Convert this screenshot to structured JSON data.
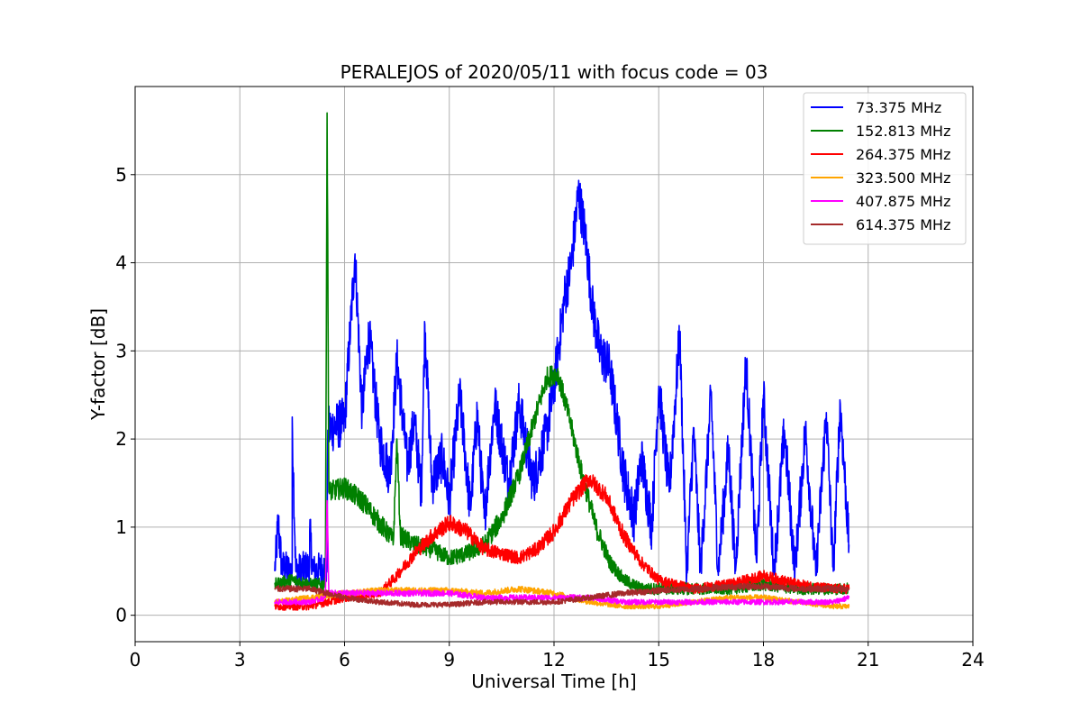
{
  "chart_data": {
    "type": "line",
    "title": "PERALEJOS of 2020/05/11 with focus code = 03",
    "xlabel": "Universal Time [h]",
    "ylabel": "Y-factor [dB]",
    "xlim": [
      0,
      24
    ],
    "ylim": [
      -0.3,
      6.0
    ],
    "xticks": [
      0,
      3,
      6,
      9,
      12,
      15,
      18,
      21,
      24
    ],
    "yticks": [
      0,
      1,
      2,
      3,
      4,
      5
    ],
    "xtick_labels": [
      "0",
      "3",
      "6",
      "9",
      "12",
      "15",
      "18",
      "21",
      "24"
    ],
    "ytick_labels": [
      "0",
      "1",
      "2",
      "3",
      "4",
      "5"
    ],
    "grid": true,
    "legend_position": "top-right",
    "series": [
      {
        "name": " 73.375 MHz",
        "color": "#0000ff",
        "noise": 0.35,
        "points": [
          [
            4.0,
            0.5
          ],
          [
            4.1,
            1.05
          ],
          [
            4.2,
            0.55
          ],
          [
            4.5,
            0.5
          ],
          [
            4.5,
            2.25
          ],
          [
            4.6,
            0.5
          ],
          [
            5.0,
            0.55
          ],
          [
            5.0,
            0.95
          ],
          [
            5.1,
            0.5
          ],
          [
            5.5,
            0.55
          ],
          [
            5.52,
            2.1
          ],
          [
            6.0,
            2.2
          ],
          [
            6.3,
            4.1
          ],
          [
            6.5,
            2.3
          ],
          [
            6.7,
            3.2
          ],
          [
            7.0,
            2.0
          ],
          [
            7.3,
            1.6
          ],
          [
            7.5,
            2.9
          ],
          [
            7.8,
            1.7
          ],
          [
            8.0,
            2.2
          ],
          [
            8.2,
            1.4
          ],
          [
            8.3,
            3.3
          ],
          [
            8.5,
            1.5
          ],
          [
            8.8,
            1.8
          ],
          [
            9.0,
            1.3
          ],
          [
            9.3,
            2.5
          ],
          [
            9.6,
            1.2
          ],
          [
            9.8,
            2.3
          ],
          [
            10.0,
            1.1
          ],
          [
            10.3,
            2.4
          ],
          [
            10.7,
            1.5
          ],
          [
            11.0,
            2.4
          ],
          [
            11.4,
            1.5
          ],
          [
            11.8,
            2.1
          ],
          [
            12.0,
            2.6
          ],
          [
            12.3,
            3.6
          ],
          [
            12.5,
            4.0
          ],
          [
            12.7,
            4.8
          ],
          [
            12.9,
            4.3
          ],
          [
            13.1,
            3.5
          ],
          [
            13.3,
            3.0
          ],
          [
            13.6,
            2.8
          ],
          [
            13.8,
            2.2
          ],
          [
            14.0,
            1.6
          ],
          [
            14.3,
            1.1
          ],
          [
            14.5,
            1.8
          ],
          [
            14.8,
            1.0
          ],
          [
            15.0,
            2.6
          ],
          [
            15.3,
            1.4
          ],
          [
            15.6,
            3.2
          ],
          [
            15.8,
            0.45
          ],
          [
            16.0,
            2.1
          ],
          [
            16.2,
            0.5
          ],
          [
            16.5,
            2.5
          ],
          [
            16.7,
            0.5
          ],
          [
            17.0,
            1.9
          ],
          [
            17.2,
            0.5
          ],
          [
            17.5,
            2.9
          ],
          [
            17.8,
            0.6
          ],
          [
            18.0,
            2.5
          ],
          [
            18.3,
            0.5
          ],
          [
            18.6,
            2.1
          ],
          [
            18.9,
            0.5
          ],
          [
            19.2,
            2.1
          ],
          [
            19.5,
            0.45
          ],
          [
            19.8,
            2.3
          ],
          [
            20.0,
            0.5
          ],
          [
            20.2,
            2.4
          ],
          [
            20.45,
            0.8
          ]
        ]
      },
      {
        "name": "152.813 MHz",
        "color": "#008000",
        "noise": 0.15,
        "points": [
          [
            4.0,
            0.35
          ],
          [
            4.5,
            0.4
          ],
          [
            5.0,
            0.35
          ],
          [
            5.45,
            0.35
          ],
          [
            5.5,
            5.7
          ],
          [
            5.55,
            1.4
          ],
          [
            6.0,
            1.45
          ],
          [
            6.5,
            1.3
          ],
          [
            7.0,
            1.05
          ],
          [
            7.4,
            0.85
          ],
          [
            7.5,
            2.0
          ],
          [
            7.6,
            0.9
          ],
          [
            8.0,
            0.8
          ],
          [
            8.5,
            0.75
          ],
          [
            9.0,
            0.65
          ],
          [
            9.5,
            0.7
          ],
          [
            10.0,
            0.8
          ],
          [
            10.5,
            1.1
          ],
          [
            11.0,
            1.6
          ],
          [
            11.5,
            2.3
          ],
          [
            11.8,
            2.7
          ],
          [
            12.1,
            2.75
          ],
          [
            12.4,
            2.3
          ],
          [
            12.8,
            1.6
          ],
          [
            13.2,
            1.0
          ],
          [
            13.6,
            0.6
          ],
          [
            14.0,
            0.4
          ],
          [
            14.5,
            0.3
          ],
          [
            15.0,
            0.3
          ],
          [
            16.0,
            0.3
          ],
          [
            17.0,
            0.3
          ],
          [
            18.0,
            0.35
          ],
          [
            19.0,
            0.3
          ],
          [
            20.0,
            0.3
          ],
          [
            20.45,
            0.3
          ]
        ]
      },
      {
        "name": "264.375 MHz",
        "color": "#ff0000",
        "noise": 0.12,
        "points": [
          [
            4.0,
            0.1
          ],
          [
            5.0,
            0.1
          ],
          [
            6.0,
            0.2
          ],
          [
            7.0,
            0.25
          ],
          [
            7.5,
            0.45
          ],
          [
            8.0,
            0.7
          ],
          [
            8.5,
            0.9
          ],
          [
            9.0,
            1.05
          ],
          [
            9.5,
            0.95
          ],
          [
            10.0,
            0.75
          ],
          [
            10.5,
            0.7
          ],
          [
            11.0,
            0.65
          ],
          [
            11.5,
            0.75
          ],
          [
            12.0,
            0.95
          ],
          [
            12.5,
            1.3
          ],
          [
            13.0,
            1.55
          ],
          [
            13.5,
            1.35
          ],
          [
            14.0,
            0.9
          ],
          [
            14.5,
            0.6
          ],
          [
            15.0,
            0.4
          ],
          [
            16.0,
            0.3
          ],
          [
            17.0,
            0.35
          ],
          [
            18.0,
            0.45
          ],
          [
            19.0,
            0.35
          ],
          [
            20.0,
            0.3
          ],
          [
            20.45,
            0.3
          ]
        ]
      },
      {
        "name": "323.500 MHz",
        "color": "#ffa500",
        "noise": 0.08,
        "points": [
          [
            4.0,
            0.15
          ],
          [
            5.0,
            0.2
          ],
          [
            6.0,
            0.25
          ],
          [
            7.0,
            0.28
          ],
          [
            8.0,
            0.28
          ],
          [
            9.0,
            0.28
          ],
          [
            10.0,
            0.25
          ],
          [
            11.0,
            0.3
          ],
          [
            12.0,
            0.25
          ],
          [
            13.0,
            0.15
          ],
          [
            14.0,
            0.1
          ],
          [
            15.0,
            0.1
          ],
          [
            16.0,
            0.15
          ],
          [
            17.0,
            0.2
          ],
          [
            18.0,
            0.2
          ],
          [
            19.0,
            0.15
          ],
          [
            20.0,
            0.1
          ],
          [
            20.45,
            0.1
          ]
        ]
      },
      {
        "name": "407.875 MHz",
        "color": "#ff00ff",
        "noise": 0.08,
        "points": [
          [
            4.0,
            0.15
          ],
          [
            5.0,
            0.15
          ],
          [
            5.45,
            0.2
          ],
          [
            5.5,
            1.3
          ],
          [
            5.55,
            0.25
          ],
          [
            6.0,
            0.25
          ],
          [
            7.0,
            0.25
          ],
          [
            8.0,
            0.25
          ],
          [
            9.0,
            0.25
          ],
          [
            10.0,
            0.2
          ],
          [
            11.0,
            0.2
          ],
          [
            12.0,
            0.2
          ],
          [
            13.0,
            0.2
          ],
          [
            14.0,
            0.15
          ],
          [
            15.0,
            0.15
          ],
          [
            16.0,
            0.15
          ],
          [
            17.0,
            0.15
          ],
          [
            18.0,
            0.15
          ],
          [
            19.0,
            0.15
          ],
          [
            20.0,
            0.15
          ],
          [
            20.45,
            0.2
          ]
        ]
      },
      {
        "name": "614.375 MHz",
        "color": "#a52a2a",
        "noise": 0.08,
        "points": [
          [
            4.0,
            0.3
          ],
          [
            5.0,
            0.3
          ],
          [
            5.5,
            0.25
          ],
          [
            6.0,
            0.2
          ],
          [
            7.0,
            0.15
          ],
          [
            8.0,
            0.12
          ],
          [
            9.0,
            0.12
          ],
          [
            10.0,
            0.15
          ],
          [
            11.0,
            0.15
          ],
          [
            12.0,
            0.15
          ],
          [
            13.0,
            0.2
          ],
          [
            14.0,
            0.25
          ],
          [
            15.0,
            0.28
          ],
          [
            16.0,
            0.3
          ],
          [
            17.0,
            0.32
          ],
          [
            18.0,
            0.33
          ],
          [
            19.0,
            0.3
          ],
          [
            20.0,
            0.3
          ],
          [
            20.45,
            0.3
          ]
        ]
      }
    ]
  }
}
